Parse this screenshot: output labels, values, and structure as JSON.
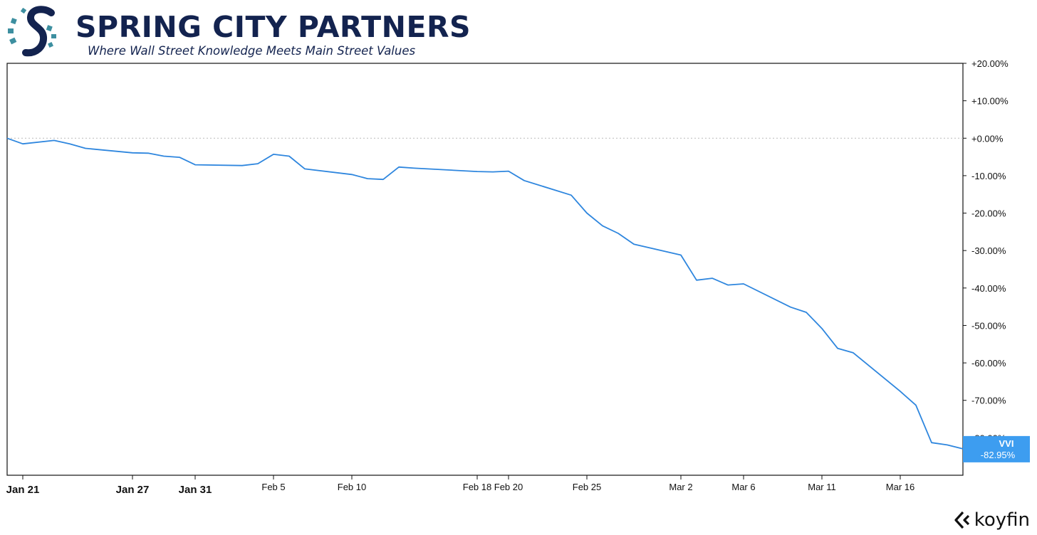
{
  "brand": {
    "name": "SPRING CITY PARTNERS",
    "tagline": "Where Wall Street Knowledge Meets Main Street Values",
    "colors": {
      "navy": "#13234f",
      "teal": "#3d8fa0"
    },
    "icon": "spring-city-s-logo"
  },
  "footer": {
    "brand": "koyfin",
    "icon": "koyfin-chevron-icon"
  },
  "chart_data": {
    "type": "line",
    "series": [
      {
        "name": "VVI",
        "color": "#2e86de",
        "last_label": "-82.95%",
        "x": [
          "Jan 20",
          "Jan 21",
          "Jan 22",
          "Jan 23",
          "Jan 24",
          "Jan 27",
          "Jan 28",
          "Jan 29",
          "Jan 30",
          "Jan 31",
          "Feb 3",
          "Feb 4",
          "Feb 5",
          "Feb 6",
          "Feb 7",
          "Feb 10",
          "Feb 11",
          "Feb 12",
          "Feb 13",
          "Feb 14",
          "Feb 18",
          "Feb 19",
          "Feb 20",
          "Feb 21",
          "Feb 24",
          "Feb 25",
          "Feb 26",
          "Feb 27",
          "Feb 28",
          "Mar 2",
          "Mar 3",
          "Mar 4",
          "Mar 5",
          "Mar 6",
          "Mar 7",
          "Mar 10",
          "Mar 11",
          "Mar 12",
          "Mar 13",
          "Mar 16",
          "Mar 17",
          "Mar 18",
          "Mar 19",
          "Mar 20"
        ],
        "values": [
          0.0,
          -1.5,
          -0.6,
          -1.5,
          -2.7,
          -3.9,
          -4.0,
          -4.8,
          -5.1,
          -7.1,
          -7.3,
          -6.8,
          -4.3,
          -4.8,
          -8.2,
          -9.7,
          -10.8,
          -11.0,
          -7.7,
          -8.0,
          -8.9,
          -9.0,
          -8.8,
          -11.3,
          -15.2,
          -20.0,
          -23.4,
          -25.4,
          -28.3,
          -31.2,
          -37.9,
          -37.4,
          -39.2,
          -38.9,
          -45.1,
          -46.5,
          -50.8,
          -56.1,
          -57.3,
          -67.6,
          -71.3,
          -81.3,
          -81.9,
          -82.95
        ]
      }
    ],
    "x_ticks": [
      {
        "label": "Jan 21",
        "x": "Jan 21",
        "bold": true
      },
      {
        "label": "Jan 27",
        "x": "Jan 27",
        "bold": true
      },
      {
        "label": "Jan 31",
        "x": "Jan 31",
        "bold": true
      },
      {
        "label": "Feb 5",
        "x": "Feb 5",
        "bold": false
      },
      {
        "label": "Feb 10",
        "x": "Feb 10",
        "bold": false
      },
      {
        "label": "Feb 18",
        "x": "Feb 18",
        "bold": false
      },
      {
        "label": "Feb 20",
        "x": "Feb 20",
        "bold": false
      },
      {
        "label": "Feb 25",
        "x": "Feb 25",
        "bold": false
      },
      {
        "label": "Mar 2",
        "x": "Mar 2",
        "bold": false
      },
      {
        "label": "Mar 6",
        "x": "Mar 6",
        "bold": false
      },
      {
        "label": "Mar 11",
        "x": "Mar 11",
        "bold": false
      },
      {
        "label": "Mar 16",
        "x": "Mar 16",
        "bold": false
      }
    ],
    "y_ticks": [
      20,
      10,
      0,
      -10,
      -20,
      -30,
      -40,
      -50,
      -60,
      -70,
      -80
    ],
    "y_tick_labels": [
      "+20.00%",
      "+10.00%",
      "+0.00%",
      "-10.00%",
      "-20.00%",
      "-30.00%",
      "-40.00%",
      "-50.00%",
      "-60.00%",
      "-70.00%",
      "-80.00%"
    ],
    "ylim": [
      -90,
      20
    ],
    "y_axis_side": "right",
    "zero_line": "dotted",
    "grid": false,
    "legend": "end-of-line badge"
  }
}
